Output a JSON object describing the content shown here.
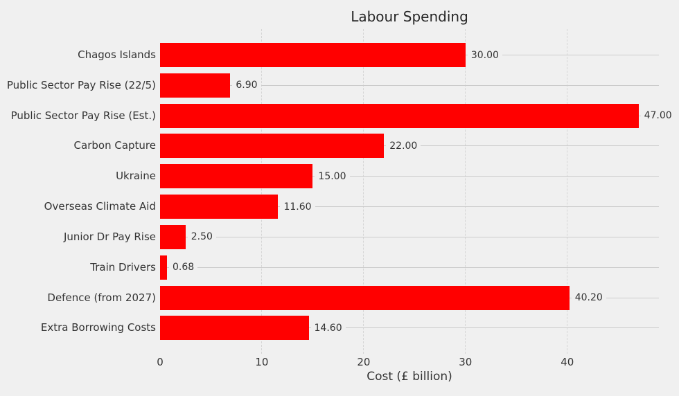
{
  "chart_data": {
    "type": "bar",
    "orientation": "horizontal",
    "title": "Labour Spending",
    "xlabel": "Cost (£ billion)",
    "categories": [
      "Chagos Islands",
      "Public Sector Pay Rise (22/5)",
      "Public Sector Pay Rise (Est.)",
      "Carbon Capture",
      "Ukraine",
      "Overseas Climate Aid",
      "Junior Dr Pay Rise",
      "Train Drivers",
      "Defence (from 2027)",
      "Extra Borrowing Costs"
    ],
    "values": [
      30.0,
      6.9,
      47.0,
      22.0,
      15.0,
      11.6,
      2.5,
      0.68,
      40.2,
      14.6
    ],
    "value_labels": [
      "30.00",
      "6.90",
      "47.00",
      "22.00",
      "15.00",
      "11.60",
      "2.50",
      "0.68",
      "40.20",
      "14.60"
    ],
    "xticks": [
      0,
      10,
      20,
      30,
      40
    ],
    "xlim": [
      0,
      49
    ],
    "grid": {
      "x_style": "dashed",
      "y_style": "solid"
    },
    "legend": "none",
    "bar_color": "#ff0000",
    "background_color": "#f0f0f0",
    "grid_color_solid": "#cbcbcb",
    "grid_color_dashed": "#d5d5d5",
    "text_color": "#333333",
    "title_color": "#262626"
  }
}
